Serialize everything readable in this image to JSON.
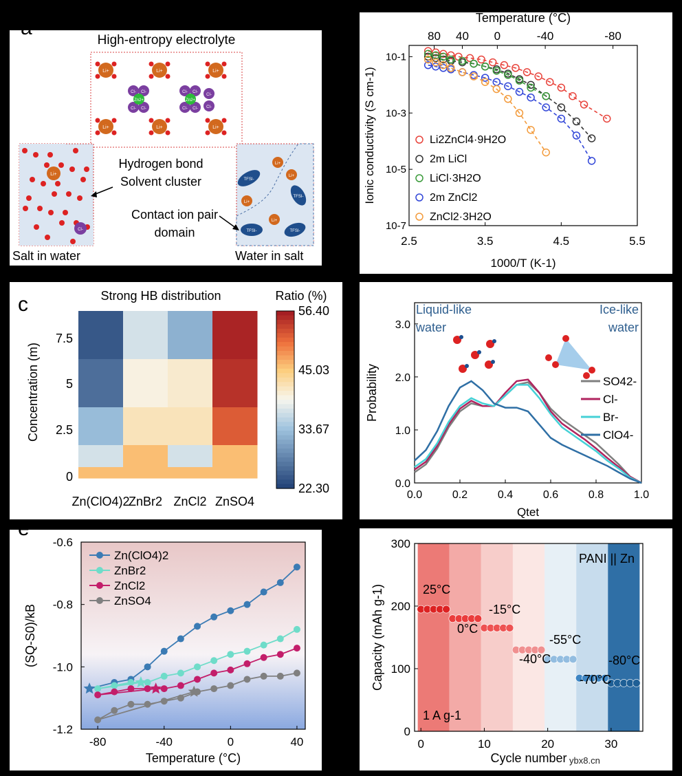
{
  "colors": {
    "c_red": "#e8433b",
    "c_black": "#333333",
    "c_green": "#3a9b3a",
    "c_blue": "#3146d8",
    "c_orange": "#f39b3c",
    "hb_low": "#2b4b7e",
    "hb_mid": "#eeeeee",
    "hb_high": "#a51f1f",
    "q_so4": "#7f7f7f",
    "q_cl": "#b0245f",
    "q_br": "#45d1d6",
    "q_clo4": "#2f6fa5",
    "s_clo4": "#3b7bb4",
    "s_znbr2": "#6fdcc9",
    "s_zncl2": "#c31e6a",
    "s_znso4": "#808080",
    "cap_red": "#e02020",
    "cap_dark": "#20507f"
  },
  "panel_a": {
    "label": "a",
    "title": "High-entropy electrolyte",
    "hb_label": [
      "Hydrogen bond",
      "Solvent cluster"
    ],
    "cip_label": [
      "Contact ion pair",
      "domain"
    ],
    "left_caption": "Salt in water",
    "right_caption": "Water in salt",
    "ions": {
      "li": "Li+",
      "cl": "Cl-",
      "zn": "Zn2+",
      "tfsi": "TFSI-"
    }
  },
  "panel_b_chart": {
    "chart_data": {
      "type": "scatter",
      "xlabel": "1000/T (K-1)",
      "ylabel": "Ionic conductivity (S cm-1)",
      "top_axis_label": "Temperature (°C)",
      "top_ticks": [
        "80",
        "40",
        "0",
        "-40",
        "-80"
      ],
      "xticks": [
        "2.5",
        "3.5",
        "4.5",
        "5.5"
      ],
      "yticks": [
        "10-1",
        "10-3",
        "10-5",
        "10-7"
      ],
      "xlim": [
        2.5,
        5.5
      ],
      "ylim": [
        -7,
        -0.8
      ],
      "series": [
        {
          "name": "Li2ZnCl4·9H2O",
          "color_key": "c_red",
          "x": [
            2.75,
            2.85,
            2.95,
            3.05,
            3.15,
            3.3,
            3.45,
            3.6,
            3.75,
            3.9,
            4.05,
            4.2,
            4.35,
            4.5,
            4.65,
            4.8,
            5.1
          ],
          "y": [
            -0.8,
            -0.85,
            -0.9,
            -0.95,
            -1.0,
            -1.05,
            -1.1,
            -1.2,
            -1.3,
            -1.4,
            -1.55,
            -1.7,
            -1.9,
            -2.1,
            -2.4,
            -2.7,
            -3.2
          ]
        },
        {
          "name": "2m LiCl",
          "color_key": "c_black",
          "x": [
            2.75,
            2.85,
            2.95,
            3.05,
            3.2,
            3.35,
            3.5,
            3.65,
            3.8,
            3.95,
            4.1,
            4.3,
            4.5,
            4.7,
            4.9
          ],
          "y": [
            -1.0,
            -1.05,
            -1.1,
            -1.15,
            -1.2,
            -1.25,
            -1.35,
            -1.45,
            -1.6,
            -1.8,
            -2.0,
            -2.4,
            -2.8,
            -3.3,
            -3.9
          ]
        },
        {
          "name": "LiCl·3H2O",
          "color_key": "c_green",
          "x": [
            2.75,
            2.85,
            2.95,
            3.05,
            3.2,
            3.35,
            3.5,
            3.65,
            3.8,
            3.95,
            4.1,
            4.3
          ],
          "y": [
            -0.9,
            -0.95,
            -1.0,
            -1.1,
            -1.15,
            -1.25,
            -1.35,
            -1.5,
            -1.65,
            -1.85,
            -2.1,
            -2.4
          ]
        },
        {
          "name": "2m ZnCl2",
          "color_key": "c_blue",
          "x": [
            2.75,
            2.85,
            2.95,
            3.05,
            3.2,
            3.35,
            3.5,
            3.65,
            3.8,
            3.95,
            4.1,
            4.3,
            4.5,
            4.7,
            4.9
          ],
          "y": [
            -1.3,
            -1.35,
            -1.4,
            -1.45,
            -1.55,
            -1.65,
            -1.75,
            -1.9,
            -2.05,
            -2.25,
            -2.45,
            -2.8,
            -3.2,
            -3.8,
            -4.7
          ]
        },
        {
          "name": "ZnCl2·3H2O",
          "color_key": "c_orange",
          "x": [
            2.75,
            2.85,
            2.95,
            3.05,
            3.2,
            3.35,
            3.5,
            3.65,
            3.8,
            3.95,
            4.1,
            4.3
          ],
          "y": [
            -1.1,
            -1.2,
            -1.3,
            -1.4,
            -1.55,
            -1.7,
            -1.9,
            -2.15,
            -2.5,
            -3.0,
            -3.6,
            -4.4
          ]
        }
      ],
      "legend": [
        {
          "label": "Li2ZnCl4·9H2O",
          "color_key": "c_red"
        },
        {
          "label": "2m LiCl",
          "color_key": "c_black"
        },
        {
          "label": "LiCl·3H2O",
          "color_key": "c_green"
        },
        {
          "label": "2m ZnCl2",
          "color_key": "c_blue"
        },
        {
          "label": "ZnCl2·3H2O",
          "color_key": "c_orange"
        }
      ]
    }
  },
  "panel_c_chart": {
    "label": "c",
    "chart_data": {
      "type": "heatmap",
      "title": "Strong HB distribution",
      "colorbar_title": "Ratio (%)",
      "colorbar_ticks": [
        "56.40",
        "45.03",
        "33.67",
        "22.30"
      ],
      "ylabel": "Concentration (m)",
      "yticks": [
        "7.5",
        "5",
        "2.5",
        "0"
      ],
      "columns": [
        "Zn(ClO4)2",
        "ZnBr2",
        "ZnCl2",
        "ZnSO4"
      ],
      "rows": [
        "7.5",
        "5",
        "2.5",
        "1",
        "0"
      ],
      "values": [
        [
          24,
          37,
          32,
          56
        ],
        [
          26,
          40,
          41,
          55
        ],
        [
          33,
          42,
          42,
          52
        ],
        [
          37,
          46,
          37,
          46
        ],
        [
          46,
          46,
          46,
          46
        ]
      ],
      "range": [
        22.3,
        56.4
      ]
    }
  },
  "panel_d_chart": {
    "chart_data": {
      "type": "line",
      "xlabel": "Qtet",
      "ylabel": "Probability",
      "xlim": [
        0,
        1
      ],
      "ylim": [
        0,
        3.4
      ],
      "xticks": [
        "0.0",
        "0.2",
        "0.4",
        "0.6",
        "0.8",
        "1.0"
      ],
      "yticks": [
        "0.0",
        "1.0",
        "2.0",
        "3.0"
      ],
      "annotation_left": [
        "Liquid-like",
        "water"
      ],
      "annotation_right": [
        "Ice-like",
        "water"
      ],
      "series": [
        {
          "name": "SO42-",
          "color_key": "q_so4",
          "x": [
            0,
            0.05,
            0.1,
            0.15,
            0.2,
            0.25,
            0.3,
            0.35,
            0.4,
            0.45,
            0.5,
            0.55,
            0.6,
            0.65,
            0.7,
            0.75,
            0.8,
            0.85,
            0.9,
            0.95,
            1.0
          ],
          "y": [
            0.2,
            0.35,
            0.65,
            1.05,
            1.35,
            1.5,
            1.45,
            1.45,
            1.65,
            1.85,
            1.9,
            1.7,
            1.4,
            1.2,
            1.05,
            0.9,
            0.75,
            0.55,
            0.35,
            0.12,
            0.0
          ]
        },
        {
          "name": "Cl-",
          "color_key": "q_cl",
          "x": [
            0,
            0.05,
            0.1,
            0.15,
            0.2,
            0.25,
            0.3,
            0.35,
            0.4,
            0.45,
            0.5,
            0.55,
            0.6,
            0.65,
            0.7,
            0.75,
            0.8,
            0.85,
            0.9,
            0.95,
            1.0
          ],
          "y": [
            0.25,
            0.4,
            0.7,
            1.1,
            1.4,
            1.55,
            1.45,
            1.45,
            1.7,
            1.92,
            1.95,
            1.7,
            1.35,
            1.12,
            0.97,
            0.82,
            0.65,
            0.47,
            0.3,
            0.12,
            0.0
          ]
        },
        {
          "name": "Br-",
          "color_key": "q_br",
          "x": [
            0,
            0.05,
            0.1,
            0.15,
            0.2,
            0.25,
            0.3,
            0.35,
            0.4,
            0.45,
            0.5,
            0.55,
            0.6,
            0.65,
            0.7,
            0.75,
            0.8,
            0.85,
            0.9,
            0.95,
            1.0
          ],
          "y": [
            0.3,
            0.45,
            0.75,
            1.15,
            1.45,
            1.6,
            1.5,
            1.45,
            1.65,
            1.85,
            1.85,
            1.6,
            1.3,
            1.05,
            0.9,
            0.75,
            0.6,
            0.42,
            0.27,
            0.1,
            0.0
          ]
        },
        {
          "name": "ClO4-",
          "color_key": "q_clo4",
          "x": [
            0,
            0.05,
            0.1,
            0.15,
            0.2,
            0.25,
            0.3,
            0.35,
            0.4,
            0.45,
            0.5,
            0.55,
            0.6,
            0.65,
            0.7,
            0.75,
            0.8,
            0.85,
            0.9,
            0.95,
            1.0
          ],
          "y": [
            0.42,
            0.62,
            0.98,
            1.45,
            1.8,
            1.92,
            1.75,
            1.5,
            1.42,
            1.42,
            1.35,
            1.1,
            0.85,
            0.72,
            0.62,
            0.52,
            0.42,
            0.32,
            0.2,
            0.08,
            0.0
          ]
        }
      ],
      "legend": [
        {
          "label": "SO42-",
          "color_key": "q_so4"
        },
        {
          "label": "Cl-",
          "color_key": "q_cl"
        },
        {
          "label": "Br-",
          "color_key": "q_br"
        },
        {
          "label": "ClO4-",
          "color_key": "q_clo4"
        }
      ]
    }
  },
  "panel_e_chart": {
    "label": "e",
    "chart_data": {
      "type": "line",
      "xlabel": "Temperature (°C)",
      "ylabel": "(SQ-S0)/kB",
      "xlim": [
        -90,
        45
      ],
      "ylim": [
        -1.2,
        -0.6
      ],
      "xticks": [
        "-80",
        "-40",
        "0",
        "40"
      ],
      "yticks": [
        "-0.6",
        "-0.8",
        "-1.0",
        "-1.2"
      ],
      "series": [
        {
          "name": "Zn(ClO4)2",
          "color_key": "s_clo4",
          "x": [
            -70,
            -60,
            -50,
            -40,
            -30,
            -20,
            -10,
            0,
            10,
            20,
            30,
            40
          ],
          "y": [
            -1.05,
            -1.04,
            -1.0,
            -0.95,
            -0.91,
            -0.87,
            -0.84,
            -0.82,
            -0.8,
            -0.76,
            -0.73,
            -0.68
          ],
          "star": [
            -85,
            -1.07
          ]
        },
        {
          "name": "ZnBr2",
          "color_key": "s_znbr2",
          "x": [
            -80,
            -70,
            -60,
            -50,
            -40,
            -30,
            -20,
            -10,
            0,
            10,
            20,
            30,
            40
          ],
          "y": [
            -1.07,
            -1.06,
            -1.05,
            -1.05,
            -1.03,
            -1.02,
            -1.0,
            -0.98,
            -0.96,
            -0.95,
            -0.93,
            -0.91,
            -0.88
          ],
          "star": [
            -54,
            -1.05
          ]
        },
        {
          "name": "ZnCl2",
          "color_key": "s_zncl2",
          "x": [
            -80,
            -70,
            -60,
            -50,
            -40,
            -30,
            -20,
            -10,
            0,
            10,
            20,
            30,
            40
          ],
          "y": [
            -1.09,
            -1.08,
            -1.07,
            -1.07,
            -1.07,
            -1.06,
            -1.04,
            -1.02,
            -1.01,
            -0.99,
            -0.97,
            -0.96,
            -0.94
          ],
          "star": [
            -45,
            -1.07
          ]
        },
        {
          "name": "ZnSO4",
          "color_key": "s_znso4",
          "x": [
            -80,
            -70,
            -60,
            -50,
            -40,
            -30,
            -20,
            -10,
            0,
            10,
            20,
            30,
            40
          ],
          "y": [
            -1.17,
            -1.14,
            -1.12,
            -1.12,
            -1.11,
            -1.1,
            -1.08,
            -1.07,
            -1.06,
            -1.04,
            -1.03,
            -1.03,
            -1.02
          ],
          "star": [
            -22,
            -1.08
          ]
        }
      ],
      "legend": [
        {
          "label": "Zn(ClO4)2",
          "color_key": "s_clo4"
        },
        {
          "label": "ZnBr2",
          "color_key": "s_znbr2"
        },
        {
          "label": "ZnCl2",
          "color_key": "s_zncl2"
        },
        {
          "label": "ZnSO4",
          "color_key": "s_znso4"
        }
      ]
    }
  },
  "panel_f_chart": {
    "chart_data": {
      "type": "scatter",
      "xlabel": "Cycle number",
      "ylabel": "Capacity (mAh g-1)",
      "xlim": [
        -1,
        35
      ],
      "ylim": [
        0,
        300
      ],
      "xticks": [
        "0",
        "10",
        "20",
        "30"
      ],
      "yticks": [
        "0",
        "100",
        "200",
        "300"
      ],
      "title": "PANI || Zn",
      "rate_label": "1 A g-1",
      "segments": [
        {
          "temp": "25°C",
          "x0": 0,
          "x1": 4,
          "value": 195,
          "color": "#dd2222",
          "band": "#ec7a76"
        },
        {
          "temp": "0°C",
          "x0": 5,
          "x1": 9,
          "value": 180,
          "color": "#ea3c3c",
          "band": "#f3aaa7"
        },
        {
          "temp": "-15°C",
          "x0": 10,
          "x1": 14,
          "value": 165,
          "color": "#ee5252",
          "band": "#f7cdca"
        },
        {
          "temp": "-40°C",
          "x0": 15,
          "x1": 19,
          "value": 130,
          "color": "#f09090",
          "band": "#fbe7e4"
        },
        {
          "temp": "-55°C",
          "x0": 20,
          "x1": 24,
          "value": 115,
          "color": "#93bde0",
          "band": "#e7f0f6"
        },
        {
          "temp": "-70°C",
          "x0": 25,
          "x1": 29,
          "value": 85,
          "color": "#3d85c3",
          "band": "#c7dced"
        },
        {
          "temp": "-80°C",
          "x0": 30,
          "x1": 34,
          "value": 77,
          "color": "#1e5f96",
          "band": "#2f6fa6"
        }
      ]
    }
  },
  "watermark": "ybx8.cn"
}
